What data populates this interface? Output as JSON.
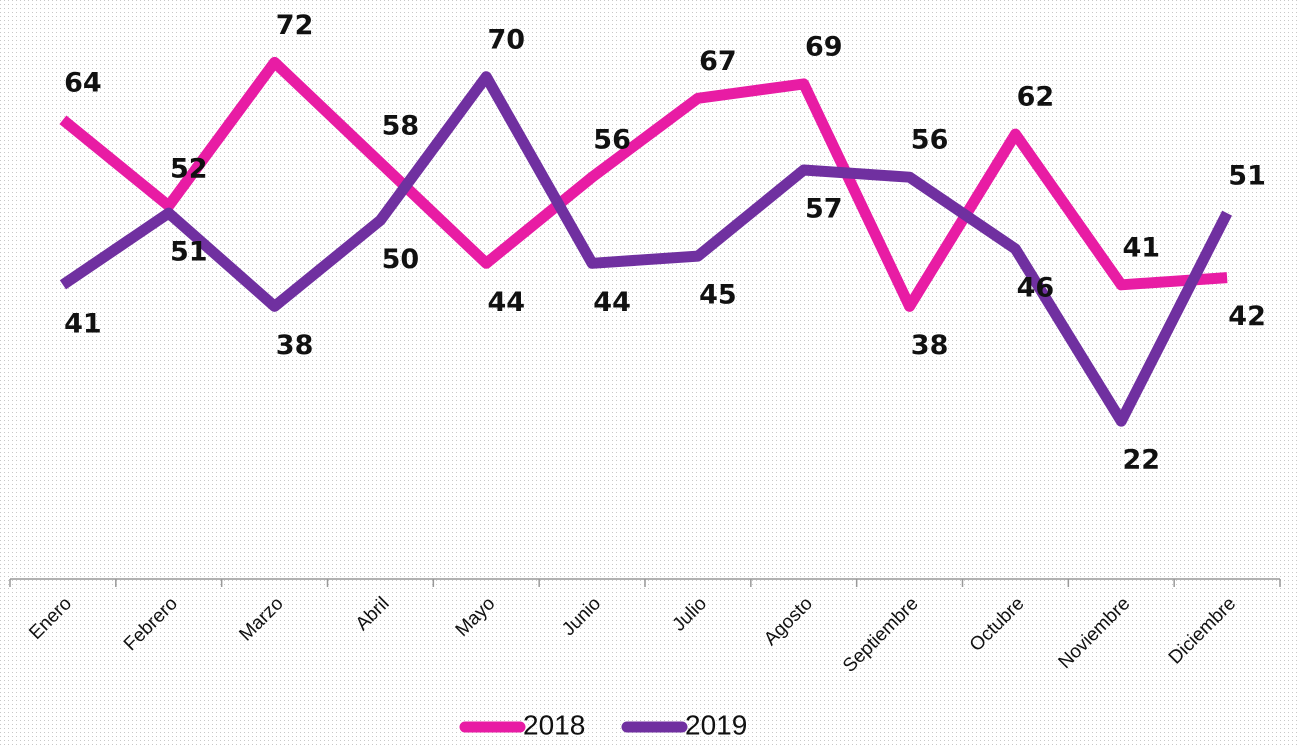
{
  "chart_data": {
    "type": "line",
    "categories": [
      "Enero",
      "Febrero",
      "Marzo",
      "Abril",
      "Mayo",
      "Junio",
      "Julio",
      "Agosto",
      "Septiembre",
      "Octubre",
      "Noviembre",
      "Diciembre"
    ],
    "series": [
      {
        "name": "2018",
        "color": "#e81ca4",
        "values": [
          64,
          52,
          72,
          58,
          44,
          56,
          67,
          69,
          38,
          62,
          41,
          42
        ]
      },
      {
        "name": "2019",
        "color": "#7030a0",
        "values": [
          41,
          51,
          38,
          50,
          70,
          44,
          45,
          57,
          56,
          46,
          22,
          51
        ]
      }
    ],
    "ylim": [
      0,
      80
    ],
    "legend": "bottom"
  }
}
